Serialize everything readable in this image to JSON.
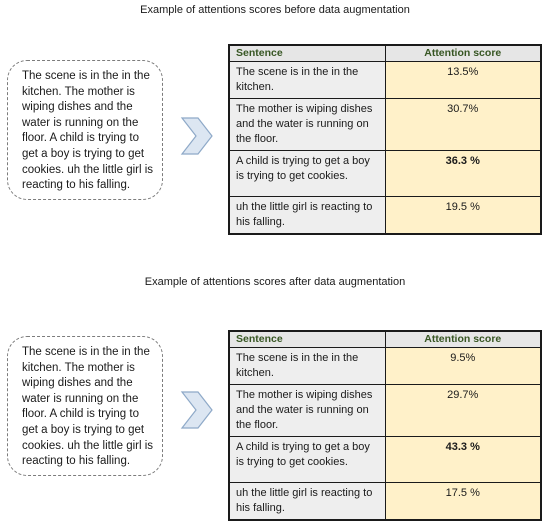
{
  "panels": [
    {
      "title": "Example of attentions scores before data augmentation",
      "transcript": "The scene is in the in the kitchen. The mother is wiping dishes and the water is running on the floor. A child is trying to get a boy is trying to get cookies. uh the little girl is reacting to his falling.",
      "table": {
        "headers": [
          "Sentence",
          "Attention score"
        ],
        "rows": [
          {
            "sentence": "The scene is in the in the kitchen.",
            "score": "13.5%"
          },
          {
            "sentence": "The mother is wiping dishes and the water is running on the floor.",
            "score": "30.7%"
          },
          {
            "sentence": "A child is trying to get a boy is trying to get cookies.",
            "score": "36.3 %"
          },
          {
            "sentence": "uh the little girl is reacting to his falling.",
            "score": "19.5 %"
          }
        ]
      }
    },
    {
      "title": "Example of attentions scores after data augmentation",
      "transcript": "The scene is in the in the kitchen. The mother is wiping dishes and the water is running on the floor. A child is trying to get a boy is trying to get cookies. uh the little girl is reacting to his falling.",
      "table": {
        "headers": [
          "Sentence",
          "Attention score"
        ],
        "rows": [
          {
            "sentence": "The scene is in the in the kitchen.",
            "score": "9.5%"
          },
          {
            "sentence": "The mother is wiping dishes and the water is running on the floor.",
            "score": "29.7%"
          },
          {
            "sentence": "A child is trying to get a boy is trying to get cookies.",
            "score": "43.3 %"
          },
          {
            "sentence": "uh the little girl is reacting to his falling.",
            "score": "17.5 %"
          }
        ]
      }
    }
  ],
  "colors": {
    "header_text": "#375623",
    "header_bg": "#e6e6e6",
    "sentence_bg": "#eeeeee",
    "score_bg": "#fff1c9",
    "arrow_fill": "#dce6f2",
    "arrow_stroke": "#8ea9c8"
  },
  "icons": {
    "arrow": "chevron-right-icon"
  }
}
